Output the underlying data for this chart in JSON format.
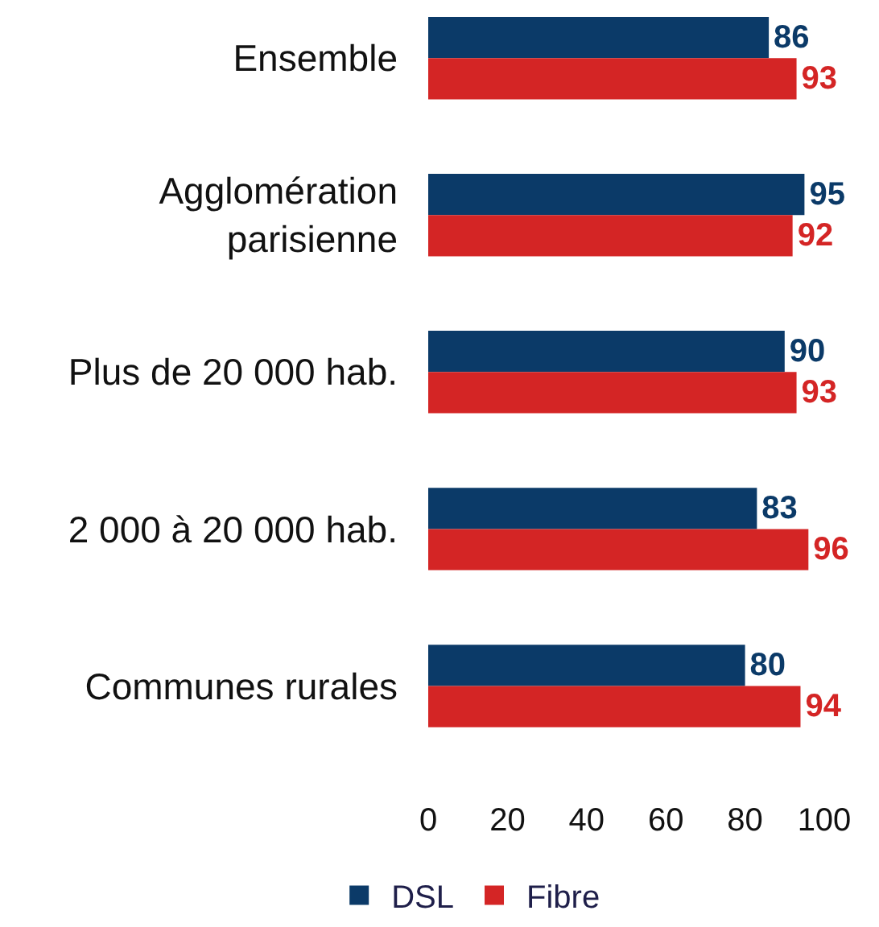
{
  "chart_data": {
    "type": "bar",
    "orientation": "horizontal",
    "categories": [
      "Ensemble",
      "Agglomération\nparisienne",
      "Plus de 20 000 hab.",
      "2 000 à 20 000 hab.",
      "Communes rurales"
    ],
    "series": [
      {
        "name": "DSL",
        "color": "#0b3a68",
        "values": [
          86,
          95,
          90,
          83,
          80
        ]
      },
      {
        "name": "Fibre",
        "color": "#d42525",
        "values": [
          93,
          92,
          93,
          96,
          94
        ]
      }
    ],
    "xlim": [
      0,
      100
    ],
    "xticks": [
      0,
      20,
      40,
      60,
      80,
      100
    ],
    "data_labels": true,
    "legend": "bottom"
  }
}
